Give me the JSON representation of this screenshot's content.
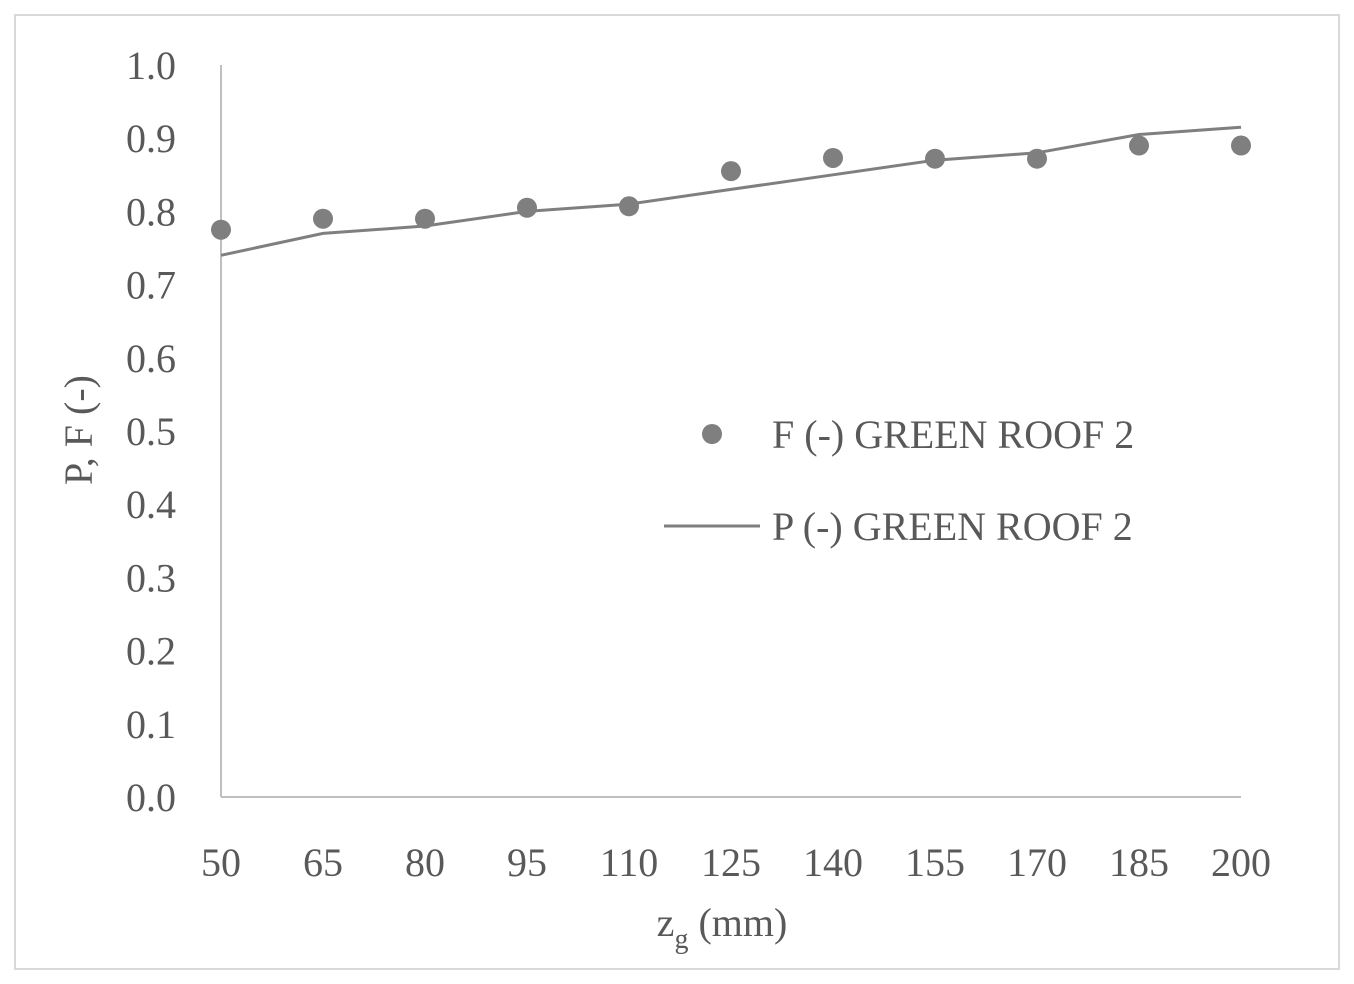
{
  "chart_data": {
    "type": "line",
    "xlabel": "z",
    "xlabel_sub": "g",
    "xlabel_unit": "(mm)",
    "ylabel": "P, F (-)",
    "ylim": [
      0,
      1.0
    ],
    "x": [
      50,
      65,
      80,
      95,
      110,
      125,
      140,
      155,
      170,
      185,
      200
    ],
    "y_ticks": [
      "0.0",
      "0.1",
      "0.2",
      "0.3",
      "0.4",
      "0.5",
      "0.6",
      "0.7",
      "0.8",
      "0.9",
      "1.0"
    ],
    "grid": false,
    "legend_position": "right-middle",
    "series": [
      {
        "name": "F (-) GREEN ROOF 2",
        "kind": "scatter",
        "color": "#7f7f7f",
        "values": [
          0.775,
          0.79,
          0.79,
          0.805,
          0.807,
          0.855,
          0.873,
          0.872,
          0.872,
          0.89,
          0.89
        ]
      },
      {
        "name": "P (-) GREEN ROOF 2",
        "kind": "line",
        "color": "#7f7f7f",
        "values": [
          0.74,
          0.77,
          0.78,
          0.8,
          0.81,
          0.83,
          0.85,
          0.87,
          0.88,
          0.905,
          0.915
        ]
      }
    ]
  }
}
